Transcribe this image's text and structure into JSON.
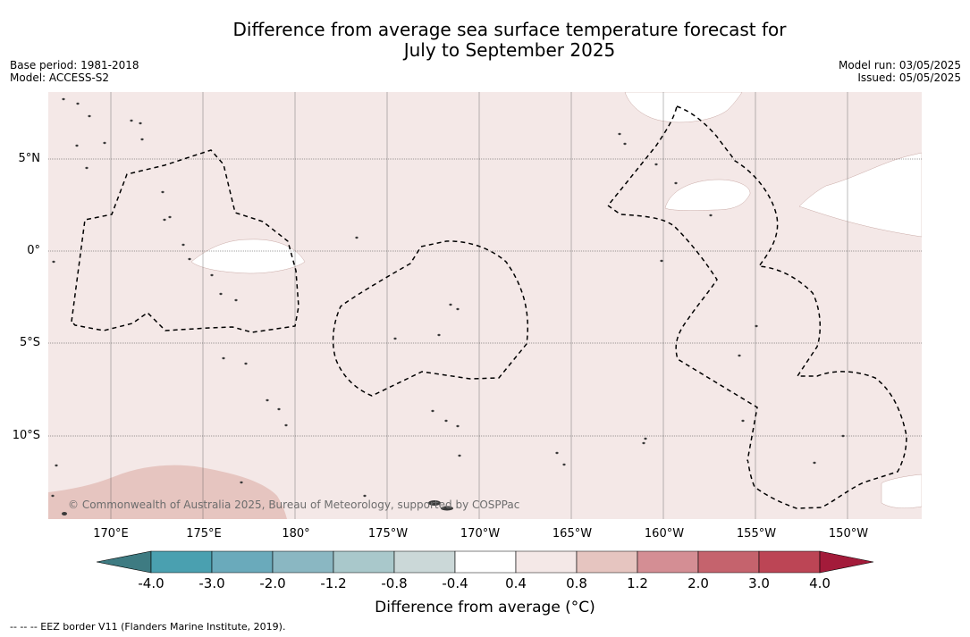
{
  "header": {
    "title_line1": "Difference from average sea surface temperature forecast for",
    "title_line2": "July to September 2025",
    "base_period": "Base period: 1981-2018",
    "model": "Model: ACCESS-S2",
    "model_run": "Model run: 03/05/2025",
    "issued": "Issued: 05/05/2025"
  },
  "map": {
    "lat_labels": [
      "5°N",
      "0°",
      "5°S",
      "10°S"
    ],
    "lon_labels": [
      "170°E",
      "175°E",
      "180°",
      "175°W",
      "170°W",
      "165°W",
      "160°W",
      "155°W",
      "150°W"
    ],
    "credit": "© Commonwealth of Australia 2025, Bureau of Meteorology, supported by COSPPac",
    "colors": {
      "anomaly_0_4_to_0_8": "#f4e8e7",
      "anomaly_0_8_to_1_2": "#e6c5c0",
      "land": "#3a3a3a",
      "eez_line": "#000000"
    }
  },
  "colorbar": {
    "tick_labels": [
      "-4.0",
      "-3.0",
      "-2.0",
      "-1.2",
      "-0.8",
      "-0.4",
      "0.4",
      "0.8",
      "1.2",
      "2.0",
      "3.0",
      "4.0"
    ],
    "colors": [
      "#3e7b82",
      "#4aa0b0",
      "#6aaabb",
      "#8ab7c2",
      "#a9c8cb",
      "#cbd8d8",
      "#ffffff",
      "#f4e8e7",
      "#e6c5c0",
      "#d48e94",
      "#c5636d",
      "#bc4555",
      "#a31b3a"
    ],
    "title": "Difference from average (°C)"
  },
  "footer": {
    "eez_legend": "--  --  -- EEZ border V11 (Flanders Marine Institute, 2019)."
  }
}
